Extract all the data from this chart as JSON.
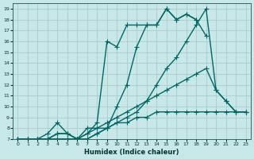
{
  "xlabel": "Humidex (Indice chaleur)",
  "bg_color": "#c8e8e8",
  "grid_color": "#aacccc",
  "line_color": "#006666",
  "xlim": [
    -0.5,
    23.5
  ],
  "ylim": [
    7,
    19.5
  ],
  "xticks": [
    0,
    1,
    2,
    3,
    4,
    5,
    6,
    7,
    8,
    9,
    10,
    11,
    12,
    13,
    14,
    15,
    16,
    17,
    18,
    19,
    20,
    21,
    22,
    23
  ],
  "yticks": [
    7,
    8,
    9,
    10,
    11,
    12,
    13,
    14,
    15,
    16,
    17,
    18,
    19
  ],
  "lines": [
    {
      "x": [
        0,
        1,
        2,
        3,
        4,
        5,
        6,
        7,
        8,
        9,
        10,
        11,
        12,
        13,
        14,
        15,
        16,
        17,
        18,
        19,
        20,
        21,
        22,
        23
      ],
      "y": [
        7,
        7,
        7,
        7,
        7,
        7,
        7,
        7,
        7.5,
        8,
        10,
        12,
        15.5,
        17.5,
        17.5,
        19,
        18,
        18.5,
        18,
        16.5,
        null,
        null,
        null,
        null
      ],
      "has_markers": true
    },
    {
      "x": [
        0,
        1,
        2,
        3,
        4,
        5,
        6,
        7,
        8,
        9,
        10,
        11,
        12,
        13,
        14,
        15,
        16,
        17,
        18,
        19,
        20,
        21,
        22,
        23
      ],
      "y": [
        7,
        7,
        7,
        7,
        7,
        7,
        7,
        7.5,
        8.5,
        16,
        15.5,
        17.5,
        17.5,
        17.5,
        17.5,
        19,
        18,
        18.5,
        18,
        null,
        null,
        null,
        null,
        null
      ],
      "has_markers": true
    },
    {
      "x": [
        0,
        1,
        2,
        3,
        4,
        5,
        6,
        7,
        8,
        9,
        10,
        11,
        12,
        13,
        14,
        15,
        16,
        17,
        18,
        19,
        20,
        21,
        22,
        23
      ],
      "y": [
        7,
        7,
        7,
        7.5,
        8.5,
        7.5,
        7,
        8,
        8,
        8,
        8.5,
        9,
        9.5,
        10.5,
        12,
        13.5,
        14.5,
        16,
        17.5,
        19,
        11.5,
        10.5,
        9.5,
        9.5
      ],
      "has_markers": true
    },
    {
      "x": [
        0,
        1,
        2,
        3,
        4,
        5,
        6,
        7,
        8,
        9,
        10,
        11,
        12,
        13,
        14,
        15,
        16,
        17,
        18,
        19,
        20,
        21,
        22,
        23
      ],
      "y": [
        7,
        7,
        7,
        7,
        7.5,
        7.5,
        7,
        7.5,
        8,
        8.5,
        9,
        9.5,
        10,
        10.5,
        11,
        11.5,
        12,
        12.5,
        13,
        13.5,
        11.5,
        10.5,
        9.5,
        9.5
      ],
      "has_markers": true
    },
    {
      "x": [
        0,
        1,
        2,
        3,
        4,
        5,
        6,
        7,
        8,
        9,
        10,
        11,
        12,
        13,
        14,
        15,
        16,
        17,
        18,
        19,
        20,
        21,
        22,
        23
      ],
      "y": [
        7,
        7,
        7,
        7,
        7.5,
        7.5,
        7,
        7,
        7.5,
        8,
        8.5,
        8.5,
        9,
        9,
        9.5,
        9.5,
        9.5,
        9.5,
        9.5,
        9.5,
        9.5,
        9.5,
        9.5,
        9.5
      ],
      "has_markers": true
    }
  ],
  "marker": "+",
  "markersize": 4,
  "linewidth": 1.0
}
